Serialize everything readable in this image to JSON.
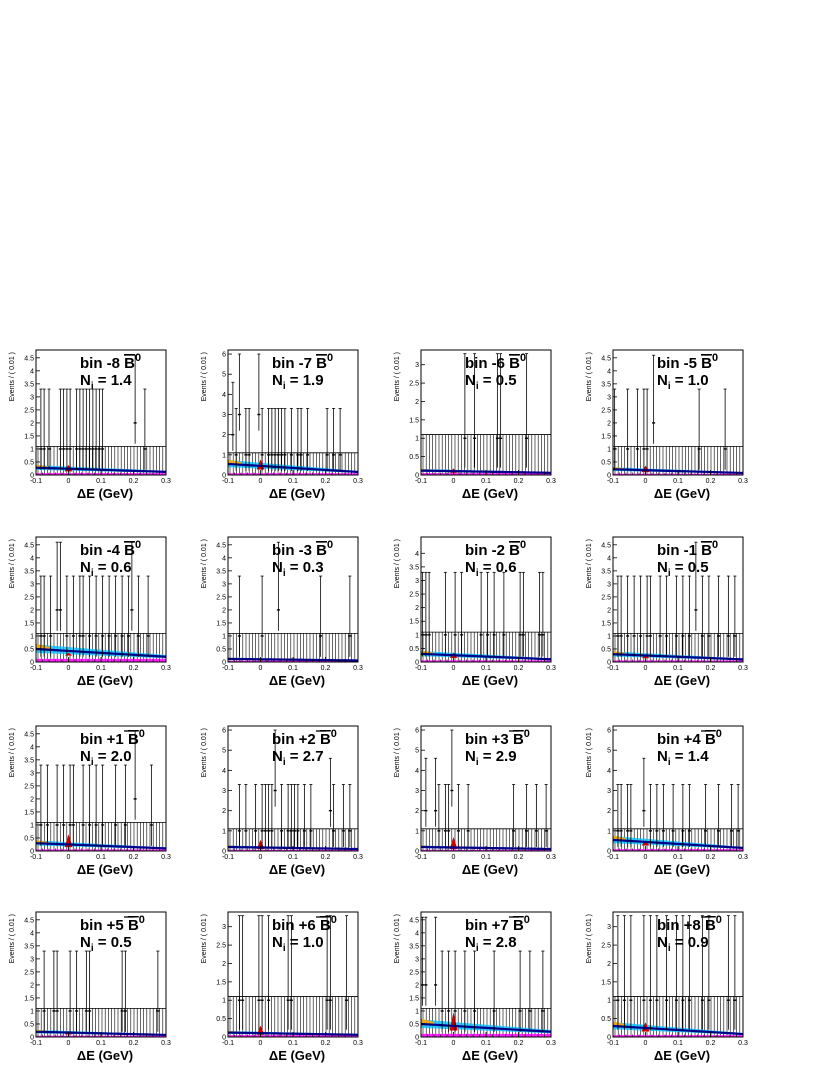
{
  "colors": {
    "frame": "#000000",
    "data": "#000000",
    "signal": "#cc0000",
    "continuum": "#00008b",
    "continuum_band": "#00bfff",
    "bbar_bkg": "#ff00ff",
    "other_bkg": "#ffa500"
  },
  "common": {
    "xlabel": "ΔE (GeV)",
    "ylabel": "Events / ( 0.01 )",
    "xlim": [
      -0.1,
      0.3
    ],
    "xticks": [
      -0.1,
      0,
      0.1,
      0.2,
      0.3
    ],
    "xtick_labels": [
      "-0.1",
      "0",
      "0.1",
      "0.2",
      "0.3"
    ],
    "B_label": "B",
    "B_superscript": "0",
    "N_prefix": "N",
    "N_subscript": "i",
    "N_eq": " = "
  },
  "chart_data": [
    {
      "type": "scatter",
      "bin_label": "bin -8",
      "N": "1.4",
      "ylim": [
        0,
        4.8
      ],
      "yticks": [
        0.5,
        1,
        1.5,
        2,
        2.5,
        3,
        3.5,
        4,
        4.5
      ],
      "ytick_labels": [
        "0.5",
        "1",
        "1.5",
        "2",
        "2.5",
        "3",
        "3.5",
        "4",
        "4.5"
      ],
      "band_top": 1.1,
      "curve_start": 0.28,
      "curve_end": 0.12,
      "signal_peak": 0.25,
      "points": [
        [
          -0.085,
          1
        ],
        [
          -0.075,
          1
        ],
        [
          -0.06,
          1
        ],
        [
          -0.025,
          1
        ],
        [
          -0.015,
          1
        ],
        [
          -0.005,
          1
        ],
        [
          0.005,
          1
        ],
        [
          0.025,
          1
        ],
        [
          0.035,
          1
        ],
        [
          0.045,
          1
        ],
        [
          0.055,
          1
        ],
        [
          0.065,
          1
        ],
        [
          0.075,
          1
        ],
        [
          0.085,
          1
        ],
        [
          0.095,
          1
        ],
        [
          0.105,
          1
        ],
        [
          0.205,
          2
        ],
        [
          0.235,
          1
        ]
      ]
    },
    {
      "type": "scatter",
      "bin_label": "bin -7",
      "N": "1.9",
      "ylim": [
        0,
        6.2
      ],
      "yticks": [
        1,
        2,
        3,
        4,
        5,
        6
      ],
      "ytick_labels": [
        "1",
        "2",
        "3",
        "4",
        "5",
        "6"
      ],
      "band_top": 1.1,
      "curve_start": 0.55,
      "curve_end": 0.15,
      "signal_peak": 0.5,
      "points": [
        [
          -0.085,
          2
        ],
        [
          -0.075,
          1
        ],
        [
          -0.065,
          3
        ],
        [
          -0.045,
          1
        ],
        [
          -0.035,
          1
        ],
        [
          -0.005,
          3
        ],
        [
          0.005,
          1
        ],
        [
          0.025,
          1
        ],
        [
          0.035,
          1
        ],
        [
          0.045,
          1
        ],
        [
          0.055,
          1
        ],
        [
          0.065,
          1
        ],
        [
          0.075,
          1
        ],
        [
          0.095,
          1
        ],
        [
          0.115,
          1
        ],
        [
          0.125,
          1
        ],
        [
          0.145,
          1
        ],
        [
          0.205,
          1
        ],
        [
          0.225,
          1
        ],
        [
          0.245,
          1
        ]
      ]
    },
    {
      "type": "scatter",
      "bin_label": "bin -6",
      "N": "0.5",
      "ylim": [
        0,
        3.4
      ],
      "yticks": [
        0.5,
        1,
        1.5,
        2,
        2.5,
        3
      ],
      "ytick_labels": [
        "0.5",
        "1",
        "1.5",
        "2",
        "2.5",
        "3"
      ],
      "band_top": 1.1,
      "curve_start": 0.12,
      "curve_end": 0.06,
      "signal_peak": 0.12,
      "points": [
        [
          0.035,
          1
        ],
        [
          0.065,
          1
        ],
        [
          0.135,
          1
        ],
        [
          0.145,
          1
        ],
        [
          0.225,
          1
        ]
      ]
    },
    {
      "type": "scatter",
      "bin_label": "bin -5",
      "N": "1.0",
      "ylim": [
        0,
        4.8
      ],
      "yticks": [
        0.5,
        1,
        1.5,
        2,
        2.5,
        3,
        3.5,
        4,
        4.5
      ],
      "ytick_labels": [
        "0.5",
        "1",
        "1.5",
        "2",
        "2.5",
        "3",
        "3.5",
        "4",
        "4.5"
      ],
      "band_top": 1.1,
      "curve_start": 0.22,
      "curve_end": 0.08,
      "signal_peak": 0.25,
      "points": [
        [
          -0.095,
          1
        ],
        [
          -0.055,
          1
        ],
        [
          -0.025,
          1
        ],
        [
          -0.005,
          1
        ],
        [
          0.005,
          1
        ],
        [
          0.025,
          2
        ],
        [
          0.165,
          1
        ],
        [
          0.245,
          1
        ]
      ]
    },
    {
      "type": "scatter",
      "bin_label": "bin -4",
      "N": "0.6",
      "ylim": [
        0,
        4.8
      ],
      "yticks": [
        0.5,
        1,
        1.5,
        2,
        2.5,
        3,
        3.5,
        4,
        4.5
      ],
      "ytick_labels": [
        "0.5",
        "1",
        "1.5",
        "2",
        "2.5",
        "3",
        "3.5",
        "4",
        "4.5"
      ],
      "band_top": 1.1,
      "curve_start": 0.5,
      "curve_end": 0.2,
      "signal_peak": 0.1,
      "points": [
        [
          -0.085,
          1
        ],
        [
          -0.075,
          1
        ],
        [
          -0.055,
          1
        ],
        [
          -0.035,
          2
        ],
        [
          -0.025,
          2
        ],
        [
          -0.005,
          1
        ],
        [
          0.015,
          1
        ],
        [
          0.035,
          1
        ],
        [
          0.045,
          1
        ],
        [
          0.065,
          1
        ],
        [
          0.085,
          1
        ],
        [
          0.105,
          1
        ],
        [
          0.125,
          1
        ],
        [
          0.145,
          1
        ],
        [
          0.165,
          1
        ],
        [
          0.185,
          1
        ],
        [
          0.195,
          2
        ],
        [
          0.215,
          1
        ],
        [
          0.245,
          1
        ]
      ]
    },
    {
      "type": "scatter",
      "bin_label": "bin -3",
      "N": "0.3",
      "ylim": [
        0,
        4.8
      ],
      "yticks": [
        0.5,
        1,
        1.5,
        2,
        2.5,
        3,
        3.5,
        4,
        4.5
      ],
      "ytick_labels": [
        "0.5",
        "1",
        "1.5",
        "2",
        "2.5",
        "3",
        "3.5",
        "4",
        "4.5"
      ],
      "band_top": 1.1,
      "curve_start": 0.12,
      "curve_end": 0.06,
      "signal_peak": 0.06,
      "points": [
        [
          -0.065,
          1
        ],
        [
          0.005,
          1
        ],
        [
          0.055,
          2
        ],
        [
          0.185,
          1
        ],
        [
          0.275,
          1
        ]
      ]
    },
    {
      "type": "scatter",
      "bin_label": "bin -2",
      "N": "0.6",
      "ylim": [
        0,
        4.6
      ],
      "yticks": [
        0.5,
        1,
        1.5,
        2,
        2.5,
        3,
        3.5,
        4
      ],
      "ytick_labels": [
        "0.5",
        "1",
        "1.5",
        "2",
        "2.5",
        "3",
        "3.5",
        "4"
      ],
      "band_top": 1.1,
      "curve_start": 0.3,
      "curve_end": 0.1,
      "signal_peak": 0.2,
      "points": [
        [
          -0.095,
          1
        ],
        [
          -0.085,
          1
        ],
        [
          -0.075,
          1
        ],
        [
          -0.025,
          1
        ],
        [
          0.005,
          1
        ],
        [
          0.025,
          1
        ],
        [
          0.085,
          1
        ],
        [
          0.105,
          1
        ],
        [
          0.125,
          1
        ],
        [
          0.155,
          1
        ],
        [
          0.205,
          1
        ],
        [
          0.215,
          1
        ],
        [
          0.265,
          1
        ],
        [
          0.275,
          1
        ]
      ]
    },
    {
      "type": "scatter",
      "bin_label": "bin -1",
      "N": "0.5",
      "ylim": [
        0,
        4.8
      ],
      "yticks": [
        0.5,
        1,
        1.5,
        2,
        2.5,
        3,
        3.5,
        4,
        4.5
      ],
      "ytick_labels": [
        "0.5",
        "1",
        "1.5",
        "2",
        "2.5",
        "3",
        "3.5",
        "4",
        "4.5"
      ],
      "band_top": 1.1,
      "curve_start": 0.3,
      "curve_end": 0.1,
      "signal_peak": 0.12,
      "points": [
        [
          -0.085,
          1
        ],
        [
          -0.075,
          1
        ],
        [
          -0.055,
          1
        ],
        [
          -0.035,
          1
        ],
        [
          -0.015,
          1
        ],
        [
          0.005,
          1
        ],
        [
          0.015,
          1
        ],
        [
          0.045,
          1
        ],
        [
          0.065,
          1
        ],
        [
          0.095,
          1
        ],
        [
          0.115,
          1
        ],
        [
          0.135,
          1
        ],
        [
          0.155,
          2
        ],
        [
          0.175,
          1
        ],
        [
          0.195,
          1
        ],
        [
          0.225,
          1
        ],
        [
          0.255,
          1
        ],
        [
          0.275,
          1
        ]
      ]
    },
    {
      "type": "scatter",
      "bin_label": "bin +1",
      "N": "2.0",
      "ylim": [
        0,
        4.8
      ],
      "yticks": [
        0.5,
        1,
        1.5,
        2,
        2.5,
        3,
        3.5,
        4,
        4.5
      ],
      "ytick_labels": [
        "0.5",
        "1",
        "1.5",
        "2",
        "2.5",
        "3",
        "3.5",
        "4",
        "4.5"
      ],
      "band_top": 1.1,
      "curve_start": 0.3,
      "curve_end": 0.1,
      "signal_peak": 0.5,
      "points": [
        [
          -0.085,
          1
        ],
        [
          -0.065,
          1
        ],
        [
          -0.035,
          1
        ],
        [
          -0.015,
          1
        ],
        [
          0.005,
          1
        ],
        [
          0.015,
          1
        ],
        [
          0.045,
          1
        ],
        [
          0.065,
          1
        ],
        [
          0.085,
          1
        ],
        [
          0.105,
          1
        ],
        [
          0.145,
          1
        ],
        [
          0.175,
          1
        ],
        [
          0.205,
          2
        ],
        [
          0.255,
          1
        ]
      ]
    },
    {
      "type": "scatter",
      "bin_label": "bin +2",
      "N": "2.7",
      "ylim": [
        0,
        6.2
      ],
      "yticks": [
        1,
        2,
        3,
        4,
        5,
        6
      ],
      "ytick_labels": [
        "1",
        "2",
        "3",
        "4",
        "5",
        "6"
      ],
      "band_top": 1.1,
      "curve_start": 0.2,
      "curve_end": 0.1,
      "signal_peak": 0.45,
      "points": [
        [
          -0.065,
          1
        ],
        [
          -0.045,
          1
        ],
        [
          -0.015,
          1
        ],
        [
          0.005,
          1
        ],
        [
          0.015,
          1
        ],
        [
          0.025,
          1
        ],
        [
          0.035,
          1
        ],
        [
          0.045,
          3
        ],
        [
          0.065,
          1
        ],
        [
          0.085,
          1
        ],
        [
          0.095,
          1
        ],
        [
          0.105,
          1
        ],
        [
          0.115,
          1
        ],
        [
          0.135,
          1
        ],
        [
          0.155,
          1
        ],
        [
          0.215,
          2
        ],
        [
          0.225,
          1
        ],
        [
          0.255,
          1
        ],
        [
          0.275,
          1
        ]
      ]
    },
    {
      "type": "scatter",
      "bin_label": "bin +3",
      "N": "2.9",
      "ylim": [
        0,
        6.2
      ],
      "yticks": [
        1,
        2,
        3,
        4,
        5,
        6
      ],
      "ytick_labels": [
        "1",
        "2",
        "3",
        "4",
        "5",
        "6"
      ],
      "band_top": 1.1,
      "curve_start": 0.2,
      "curve_end": 0.1,
      "signal_peak": 0.6,
      "points": [
        [
          -0.085,
          2
        ],
        [
          -0.055,
          2
        ],
        [
          -0.045,
          1
        ],
        [
          -0.025,
          1
        ],
        [
          -0.015,
          1
        ],
        [
          -0.005,
          3
        ],
        [
          0.015,
          1
        ],
        [
          0.045,
          1
        ],
        [
          0.185,
          1
        ],
        [
          0.225,
          1
        ],
        [
          0.255,
          1
        ],
        [
          0.285,
          1
        ]
      ]
    },
    {
      "type": "scatter",
      "bin_label": "bin +4",
      "N": "1.4",
      "ylim": [
        0,
        6.2
      ],
      "yticks": [
        1,
        2,
        3,
        4,
        5,
        6
      ],
      "ytick_labels": [
        "1",
        "2",
        "3",
        "4",
        "5",
        "6"
      ],
      "band_top": 1.1,
      "curve_start": 0.55,
      "curve_end": 0.15,
      "signal_peak": 0.25,
      "points": [
        [
          -0.085,
          1
        ],
        [
          -0.075,
          1
        ],
        [
          -0.055,
          1
        ],
        [
          -0.045,
          1
        ],
        [
          -0.005,
          2
        ],
        [
          0.015,
          1
        ],
        [
          0.035,
          1
        ],
        [
          0.055,
          1
        ],
        [
          0.085,
          1
        ],
        [
          0.115,
          1
        ],
        [
          0.135,
          1
        ],
        [
          0.185,
          1
        ],
        [
          0.225,
          1
        ],
        [
          0.265,
          1
        ],
        [
          0.285,
          1
        ]
      ]
    },
    {
      "type": "scatter",
      "bin_label": "bin +5",
      "N": "0.5",
      "ylim": [
        0,
        4.8
      ],
      "yticks": [
        0.5,
        1,
        1.5,
        2,
        2.5,
        3,
        3.5,
        4,
        4.5
      ],
      "ytick_labels": [
        "0.5",
        "1",
        "1.5",
        "2",
        "2.5",
        "3",
        "3.5",
        "4",
        "4.5"
      ],
      "band_top": 1.1,
      "curve_start": 0.2,
      "curve_end": 0.08,
      "signal_peak": 0.12,
      "points": [
        [
          -0.075,
          1
        ],
        [
          -0.045,
          1
        ],
        [
          -0.035,
          1
        ],
        [
          0.005,
          1
        ],
        [
          0.025,
          1
        ],
        [
          0.055,
          1
        ],
        [
          0.065,
          1
        ],
        [
          0.165,
          1
        ],
        [
          0.175,
          1
        ],
        [
          0.275,
          1
        ]
      ]
    },
    {
      "type": "scatter",
      "bin_label": "bin +6",
      "N": "1.0",
      "ylim": [
        0,
        3.4
      ],
      "yticks": [
        0.5,
        1,
        1.5,
        2,
        2.5,
        3
      ],
      "ytick_labels": [
        "0.5",
        "1",
        "1.5",
        "2",
        "2.5",
        "3"
      ],
      "band_top": 1.1,
      "curve_start": 0.12,
      "curve_end": 0.06,
      "signal_peak": 0.25,
      "points": [
        [
          -0.065,
          1
        ],
        [
          -0.055,
          1
        ],
        [
          -0.005,
          1
        ],
        [
          0.005,
          1
        ],
        [
          0.025,
          1
        ],
        [
          0.085,
          1
        ],
        [
          0.095,
          1
        ],
        [
          0.205,
          1
        ],
        [
          0.215,
          1
        ],
        [
          0.265,
          1
        ]
      ]
    },
    {
      "type": "scatter",
      "bin_label": "bin +7",
      "N": "2.8",
      "ylim": [
        0,
        4.8
      ],
      "yticks": [
        0.5,
        1,
        1.5,
        2,
        2.5,
        3,
        3.5,
        4,
        4.5
      ],
      "ytick_labels": [
        "0.5",
        "1",
        "1.5",
        "2",
        "2.5",
        "3",
        "3.5",
        "4",
        "4.5"
      ],
      "band_top": 1.1,
      "curve_start": 0.5,
      "curve_end": 0.2,
      "signal_peak": 0.7,
      "points": [
        [
          -0.095,
          2
        ],
        [
          -0.085,
          2
        ],
        [
          -0.055,
          2
        ],
        [
          -0.035,
          1
        ],
        [
          -0.015,
          1
        ],
        [
          0.005,
          1
        ],
        [
          0.035,
          1
        ],
        [
          0.065,
          1
        ],
        [
          0.125,
          1
        ],
        [
          0.205,
          1
        ],
        [
          0.235,
          1
        ],
        [
          0.275,
          1
        ]
      ]
    },
    {
      "type": "scatter",
      "bin_label": "bin +8",
      "N": "0.9",
      "ylim": [
        0,
        3.4
      ],
      "yticks": [
        0.5,
        1,
        1.5,
        2,
        2.5,
        3
      ],
      "ytick_labels": [
        "0.5",
        "1",
        "1.5",
        "2",
        "2.5",
        "3"
      ],
      "band_top": 1.1,
      "curve_start": 0.3,
      "curve_end": 0.08,
      "signal_peak": 0.25,
      "points": [
        [
          -0.085,
          1
        ],
        [
          -0.065,
          1
        ],
        [
          -0.045,
          1
        ],
        [
          -0.005,
          1
        ],
        [
          0.015,
          1
        ],
        [
          0.035,
          1
        ],
        [
          0.065,
          1
        ],
        [
          0.095,
          1
        ],
        [
          0.115,
          1
        ],
        [
          0.135,
          1
        ],
        [
          0.175,
          1
        ],
        [
          0.195,
          1
        ],
        [
          0.255,
          1
        ],
        [
          0.275,
          1
        ]
      ]
    }
  ]
}
